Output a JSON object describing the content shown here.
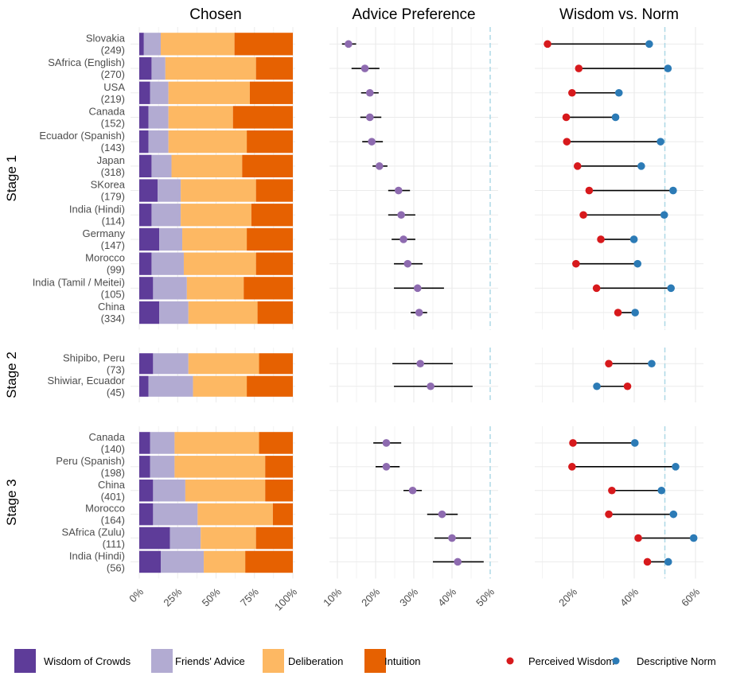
{
  "chart_data": [
    {
      "type": "bar",
      "subtype": "stacked-horizontal-100",
      "title": "Chosen",
      "xlabel": "",
      "ylabel": "",
      "xlim": [
        0,
        100
      ],
      "x_ticks": [
        "0%",
        "25%",
        "50%",
        "75%",
        "100%"
      ],
      "grid": true,
      "series_names": [
        "Wisdom of Crowds",
        "Friends' Advice",
        "Deliberation",
        "Intuition"
      ],
      "colors": [
        "#5e3c99",
        "#b2abd2",
        "#fdb863",
        "#e66101"
      ]
    },
    {
      "type": "scatter",
      "subtype": "point-with-errorbar",
      "title": "Advice Preference",
      "xlim": [
        8,
        52
      ],
      "x_ticks": [
        "10%",
        "20%",
        "30%",
        "40%",
        "50%"
      ],
      "reference_line": 50,
      "point_color": "#8e6bb0",
      "grid": true
    },
    {
      "type": "scatter",
      "subtype": "dumbbell",
      "title": "Wisdom vs. Norm",
      "xlim": [
        8,
        63
      ],
      "x_ticks": [
        "20%",
        "40%",
        "60%"
      ],
      "reference_line": 50,
      "series_names": [
        "Perceived Wisdom",
        "Descriptive Norm"
      ],
      "colors": [
        "#d7191c",
        "#2c7bb6"
      ],
      "grid": true
    }
  ],
  "stages": [
    {
      "label": "Stage 1",
      "rows": [
        {
          "name": "Slovakia",
          "n": "(249)",
          "chosen": [
            3,
            11,
            48,
            38
          ],
          "advice": 12.9,
          "advice_ci": [
            11.2,
            14.9
          ],
          "wisdom": 11.7,
          "norm": 44.9
        },
        {
          "name": "SAfrica (English)",
          "n": "(270)",
          "chosen": [
            8,
            9,
            59,
            24
          ],
          "advice": 17.2,
          "advice_ci": [
            13.7,
            21.0
          ],
          "wisdom": 21.9,
          "norm": 51.0
        },
        {
          "name": "USA",
          "n": "(219)",
          "chosen": [
            7,
            12,
            53,
            28
          ],
          "advice": 18.5,
          "advice_ci": [
            16.2,
            20.8
          ],
          "wisdom": 19.7,
          "norm": 35.0
        },
        {
          "name": "Canada",
          "n": "(152)",
          "chosen": [
            6,
            13,
            42,
            39
          ],
          "advice": 18.5,
          "advice_ci": [
            16.0,
            21.5
          ],
          "wisdom": 17.8,
          "norm": 33.9
        },
        {
          "name": "Ecuador (Spanish)",
          "n": "(143)",
          "chosen": [
            6,
            13,
            51,
            30
          ],
          "advice": 19.0,
          "advice_ci": [
            16.5,
            21.9
          ],
          "wisdom": 18.0,
          "norm": 48.6
        },
        {
          "name": "Japan",
          "n": "(318)",
          "chosen": [
            8,
            13,
            46,
            33
          ],
          "advice": 21.0,
          "advice_ci": [
            19.2,
            23.1
          ],
          "wisdom": 21.5,
          "norm": 42.3
        },
        {
          "name": "SKorea",
          "n": "(179)",
          "chosen": [
            12,
            15,
            49,
            24
          ],
          "advice": 26.0,
          "advice_ci": [
            23.3,
            29.0
          ],
          "wisdom": 25.3,
          "norm": 52.7
        },
        {
          "name": "India (Hindi)",
          "n": "(114)",
          "chosen": [
            8,
            19,
            46,
            27
          ],
          "advice": 26.7,
          "advice_ci": [
            23.3,
            30.4
          ],
          "wisdom": 23.4,
          "norm": 49.8
        },
        {
          "name": "Germany",
          "n": "(147)",
          "chosen": [
            13,
            15,
            42,
            30
          ],
          "advice": 27.3,
          "advice_ci": [
            24.2,
            30.4
          ],
          "wisdom": 29.1,
          "norm": 39.9
        },
        {
          "name": "Morocco",
          "n": "(99)",
          "chosen": [
            8,
            21,
            47,
            24
          ],
          "advice": 28.4,
          "advice_ci": [
            24.8,
            32.3
          ],
          "wisdom": 21.0,
          "norm": 41.1
        },
        {
          "name": "India (Tamil / Meitei)",
          "n": "(105)",
          "chosen": [
            9,
            22,
            37,
            32
          ],
          "advice": 31.0,
          "advice_ci": [
            24.8,
            37.9
          ],
          "wisdom": 27.7,
          "norm": 52.0
        },
        {
          "name": "China",
          "n": "(334)",
          "chosen": [
            13,
            19,
            45,
            23
          ],
          "advice": 31.4,
          "advice_ci": [
            29.2,
            33.5
          ],
          "wisdom": 34.7,
          "norm": 40.3
        }
      ]
    },
    {
      "label": "Stage 2",
      "rows": [
        {
          "name": "Shipibo, Peru",
          "n": "(73)",
          "chosen": [
            9,
            23,
            46,
            22
          ],
          "advice": 31.7,
          "advice_ci": [
            24.4,
            40.2
          ],
          "wisdom": 31.7,
          "norm": 45.7
        },
        {
          "name": "Shiwiar, Ecuador",
          "n": "(45)",
          "chosen": [
            6,
            29,
            35,
            30
          ],
          "advice": 34.4,
          "advice_ci": [
            24.8,
            45.4
          ],
          "wisdom": 37.8,
          "norm": 27.8
        }
      ]
    },
    {
      "label": "Stage 3",
      "rows": [
        {
          "name": "Canada",
          "n": "(140)",
          "chosen": [
            7,
            16,
            55,
            22
          ],
          "advice": 22.8,
          "advice_ci": [
            19.4,
            26.7
          ],
          "wisdom": 20.0,
          "norm": 40.2
        },
        {
          "name": "Peru (Spanish)",
          "n": "(198)",
          "chosen": [
            7,
            16,
            59,
            18
          ],
          "advice": 22.8,
          "advice_ci": [
            20.0,
            26.3
          ],
          "wisdom": 19.7,
          "norm": 53.5
        },
        {
          "name": "China",
          "n": "(401)",
          "chosen": [
            9,
            21,
            52,
            18
          ],
          "advice": 29.7,
          "advice_ci": [
            27.3,
            32.1
          ],
          "wisdom": 32.7,
          "norm": 48.9
        },
        {
          "name": "Morocco",
          "n": "(164)",
          "chosen": [
            9,
            29,
            49,
            13
          ],
          "advice": 37.4,
          "advice_ci": [
            33.5,
            41.5
          ],
          "wisdom": 31.7,
          "norm": 52.8
        },
        {
          "name": "SAfrica (Zulu)",
          "n": "(111)",
          "chosen": [
            20,
            20,
            36,
            24
          ],
          "advice": 40.0,
          "advice_ci": [
            35.4,
            45.0
          ],
          "wisdom": 41.3,
          "norm": 59.4
        },
        {
          "name": "India (Hindi)",
          "n": "(56)",
          "chosen": [
            14,
            28,
            27,
            31
          ],
          "advice": 41.5,
          "advice_ci": [
            35.0,
            48.3
          ],
          "wisdom": 44.3,
          "norm": 51.1
        }
      ]
    }
  ],
  "legend": {
    "fill": [
      {
        "label": "Wisdom of Crowds",
        "color": "#5e3c99"
      },
      {
        "label": "Friends' Advice",
        "color": "#b2abd2"
      },
      {
        "label": "Deliberation",
        "color": "#fdb863"
      },
      {
        "label": "Intuition",
        "color": "#e66101"
      }
    ],
    "points": [
      {
        "label": "Perceived Wisdom",
        "color": "#d7191c"
      },
      {
        "label": "Descriptive Norm",
        "color": "#2c7bb6"
      }
    ]
  }
}
